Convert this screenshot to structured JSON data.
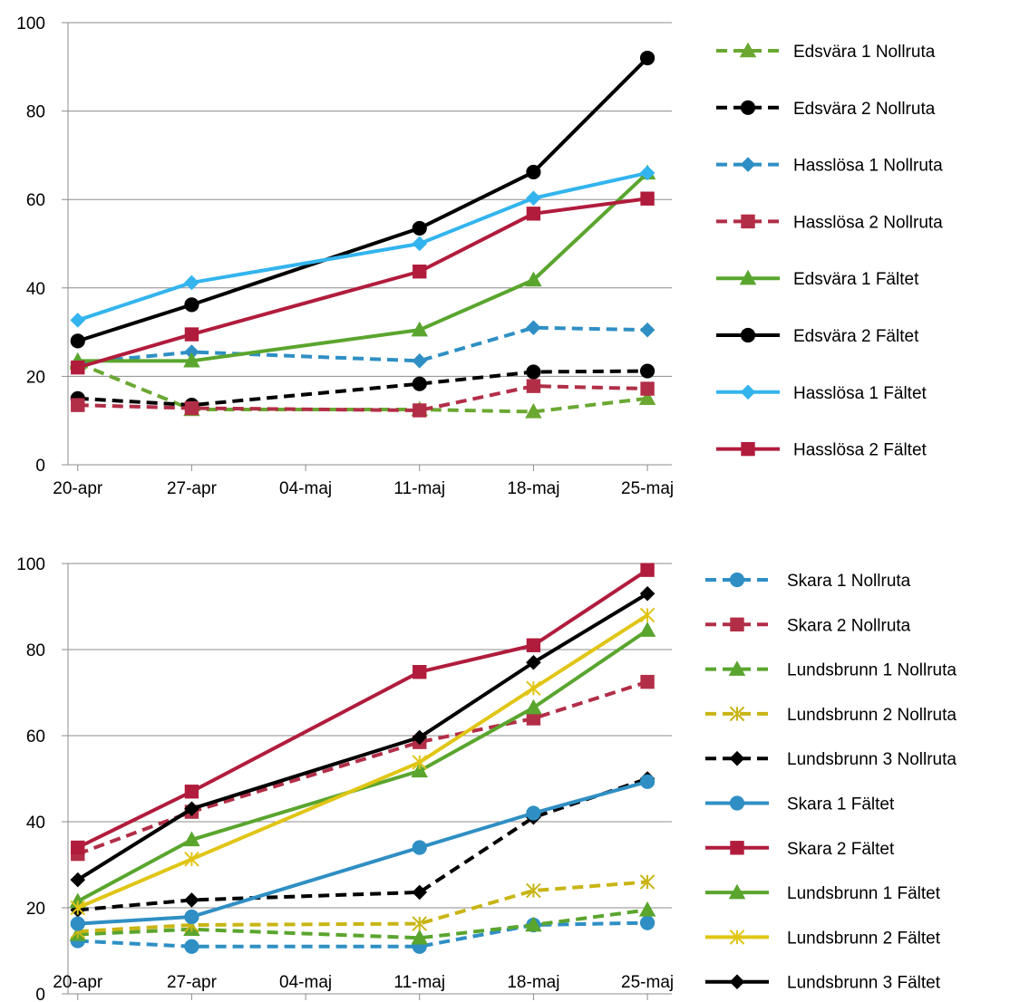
{
  "chart_data": [
    {
      "type": "line",
      "title": "",
      "xlabel": "",
      "ylabel": "",
      "x": [
        "20-apr",
        "27-apr",
        "04-maj",
        "11-maj",
        "18-maj",
        "25-maj"
      ],
      "x_days": [
        0,
        7,
        14,
        21,
        28,
        35
      ],
      "ylim": [
        0,
        100
      ],
      "yticks": [
        0,
        20,
        40,
        60,
        80,
        100
      ],
      "grid": true,
      "legend_position": "right",
      "series": [
        {
          "name": "Edsvära 1 Nollruta",
          "color": "#6aa832",
          "dash": true,
          "marker": "triangle",
          "points": [
            [
              0,
              23
            ],
            [
              7,
              12.5
            ],
            [
              21,
              12.5
            ],
            [
              28,
              12
            ],
            [
              35,
              15
            ]
          ]
        },
        {
          "name": "Edsvära 2 Nollruta",
          "color": "#000000",
          "dash": true,
          "marker": "circle",
          "points": [
            [
              0,
              15
            ],
            [
              7,
              13.5
            ],
            [
              21,
              18.3
            ],
            [
              28,
              21
            ],
            [
              35,
              21.2
            ]
          ]
        },
        {
          "name": "Hasslösa 1 Nollruta",
          "color": "#2f8fc4",
          "dash": true,
          "marker": "diamond",
          "points": [
            [
              0,
              23
            ],
            [
              7,
              25.5
            ],
            [
              21,
              23.5
            ],
            [
              28,
              31
            ],
            [
              35,
              30.5
            ]
          ]
        },
        {
          "name": "Hasslösa 2 Nollruta",
          "color": "#b22e47",
          "dash": true,
          "marker": "square",
          "points": [
            [
              0,
              13.5
            ],
            [
              7,
              12.8
            ],
            [
              21,
              12.3
            ],
            [
              28,
              17.8
            ],
            [
              35,
              17.2
            ]
          ]
        },
        {
          "name": "Edsvära 1 Fältet",
          "color": "#5aa52e",
          "dash": false,
          "marker": "triangle",
          "points": [
            [
              0,
              23.5
            ],
            [
              7,
              23.5
            ],
            [
              21,
              30.5
            ],
            [
              28,
              41.8
            ],
            [
              35,
              66
            ]
          ]
        },
        {
          "name": "Edsvära 2 Fältet",
          "color": "#000000",
          "dash": false,
          "marker": "circle",
          "points": [
            [
              0,
              28
            ],
            [
              7,
              36.2
            ],
            [
              21,
              53.5
            ],
            [
              28,
              66.2
            ],
            [
              35,
              92
            ]
          ]
        },
        {
          "name": "Hasslösa 1 Fältet",
          "color": "#33b4ee",
          "dash": false,
          "marker": "diamond",
          "points": [
            [
              0,
              32.7
            ],
            [
              7,
              41.2
            ],
            [
              21,
              50
            ],
            [
              28,
              60.3
            ],
            [
              35,
              66
            ]
          ]
        },
        {
          "name": "Hasslösa 2 Fältet",
          "color": "#b11c3c",
          "dash": false,
          "marker": "square",
          "points": [
            [
              0,
              22
            ],
            [
              7,
              29.5
            ],
            [
              21,
              43.7
            ],
            [
              28,
              56.8
            ],
            [
              35,
              60.2
            ]
          ]
        }
      ]
    },
    {
      "type": "line",
      "title": "",
      "xlabel": "",
      "ylabel": "",
      "x": [
        "20-apr",
        "27-apr",
        "04-maj",
        "11-maj",
        "18-maj",
        "25-maj"
      ],
      "x_days": [
        0,
        7,
        14,
        21,
        28,
        35
      ],
      "ylim": [
        0,
        100
      ],
      "yticks": [
        0,
        20,
        40,
        60,
        80,
        100
      ],
      "grid": true,
      "legend_position": "right",
      "series": [
        {
          "name": "Skara 1 Nollruta",
          "color": "#2f8fc4",
          "dash": true,
          "marker": "circle",
          "points": [
            [
              0,
              12.3
            ],
            [
              7,
              11
            ],
            [
              21,
              11
            ],
            [
              28,
              16
            ],
            [
              35,
              16.5
            ]
          ]
        },
        {
          "name": "Skara 2 Nollruta",
          "color": "#b22e47",
          "dash": true,
          "marker": "square",
          "points": [
            [
              0,
              32.5
            ],
            [
              7,
              42.3
            ],
            [
              21,
              58.5
            ],
            [
              28,
              64
            ],
            [
              35,
              72.5
            ]
          ]
        },
        {
          "name": "Lundsbrunn 1 Nollruta",
          "color": "#5aa52e",
          "dash": true,
          "marker": "triangle",
          "points": [
            [
              0,
              13.8
            ],
            [
              7,
              15
            ],
            [
              21,
              13
            ],
            [
              28,
              16
            ],
            [
              35,
              19.5
            ]
          ]
        },
        {
          "name": "Lundsbrunn 2 Nollruta",
          "color": "#c8b514",
          "dash": true,
          "marker": "x",
          "points": [
            [
              0,
              14.5
            ],
            [
              7,
              16
            ],
            [
              21,
              16.3
            ],
            [
              28,
              24
            ],
            [
              35,
              26
            ]
          ]
        },
        {
          "name": "Lundsbrunn 3 Nollruta",
          "color": "#000000",
          "dash": true,
          "marker": "diamond",
          "points": [
            [
              0,
              19.5
            ],
            [
              7,
              21.8
            ],
            [
              21,
              23.6
            ],
            [
              28,
              41
            ],
            [
              35,
              50
            ]
          ]
        },
        {
          "name": "Skara 1 Fältet",
          "color": "#2f8fc4",
          "dash": false,
          "marker": "circle",
          "points": [
            [
              0,
              16.3
            ],
            [
              7,
              17.9
            ],
            [
              21,
              34
            ],
            [
              28,
              42
            ],
            [
              35,
              49.3
            ]
          ]
        },
        {
          "name": "Skara 2 Fältet",
          "color": "#b11c3c",
          "dash": false,
          "marker": "square",
          "points": [
            [
              0,
              34
            ],
            [
              7,
              47
            ],
            [
              21,
              74.8
            ],
            [
              28,
              81
            ],
            [
              35,
              98.5
            ]
          ]
        },
        {
          "name": "Lundsbrunn 1 Fältet",
          "color": "#5aa52e",
          "dash": false,
          "marker": "triangle",
          "points": [
            [
              0,
              21.5
            ],
            [
              7,
              35.8
            ],
            [
              21,
              51.8
            ],
            [
              28,
              66.5
            ],
            [
              35,
              84.5
            ]
          ]
        },
        {
          "name": "Lundsbrunn 2 Fältet",
          "color": "#e0c515",
          "dash": false,
          "marker": "x",
          "points": [
            [
              0,
              20
            ],
            [
              7,
              31.3
            ],
            [
              21,
              53.8
            ],
            [
              28,
              71
            ],
            [
              35,
              88
            ]
          ]
        },
        {
          "name": "Lundsbrunn 3 Fältet",
          "color": "#000000",
          "dash": false,
          "marker": "diamond",
          "points": [
            [
              0,
              26.5
            ],
            [
              7,
              43
            ],
            [
              21,
              59.6
            ],
            [
              28,
              77
            ],
            [
              35,
              93
            ]
          ]
        }
      ]
    }
  ]
}
